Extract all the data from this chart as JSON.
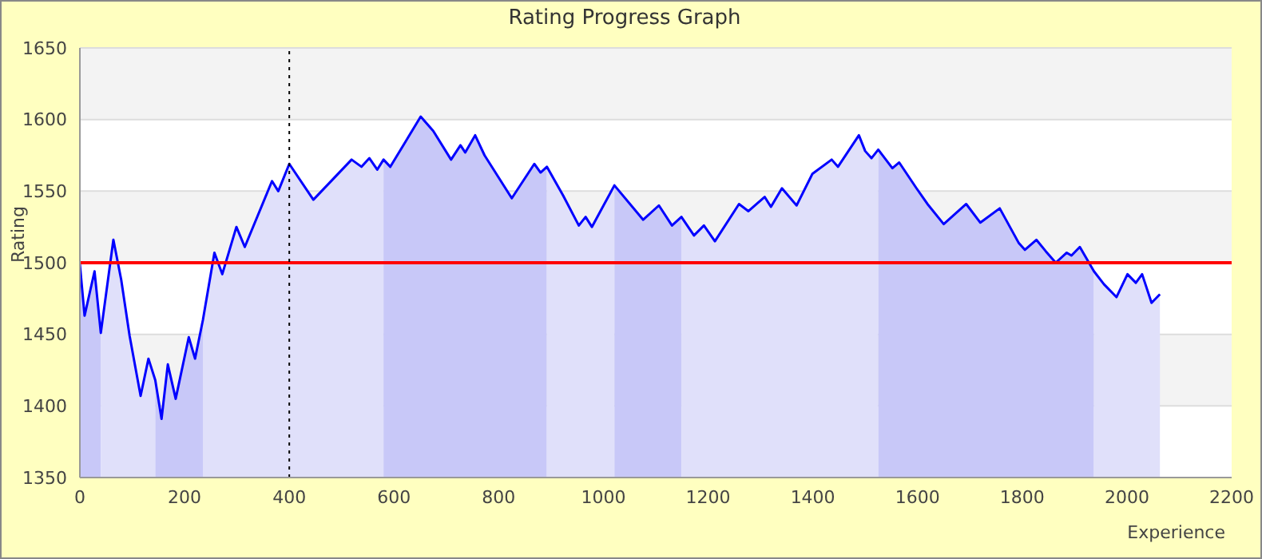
{
  "chart_data": {
    "type": "area",
    "title": "Rating Progress Graph",
    "xlabel": "Experience",
    "ylabel": "Rating",
    "series": [
      {
        "color": "#c8c8f8",
        "x": [
          0,
          9,
          28,
          40
        ],
        "values": [
          1499,
          1463,
          1494,
          1451
        ]
      },
      {
        "color": "#e0e0fa",
        "x": [
          40,
          64,
          79,
          95,
          116,
          131,
          144
        ],
        "values": [
          1451,
          1516,
          1488,
          1449,
          1407,
          1433,
          1418
        ]
      },
      {
        "color": "#c8c8f8",
        "x": [
          144,
          156,
          168,
          183,
          208,
          220,
          235
        ],
        "values": [
          1418,
          1391,
          1429,
          1405,
          1448,
          1433,
          1460
        ]
      },
      {
        "color": "#e0e0fa",
        "x": [
          235,
          257,
          272,
          299,
          315,
          367,
          379,
          400,
          446,
          519,
          538,
          553,
          568,
          580
        ],
        "values": [
          1460,
          1507,
          1492,
          1525,
          1511,
          1557,
          1550,
          1569,
          1544,
          1572,
          1567,
          1573,
          1565,
          1572
        ]
      },
      {
        "color": "#c8c8f8",
        "x": [
          580,
          593,
          651,
          675,
          709,
          727,
          736,
          755,
          773,
          825,
          868,
          880,
          892
        ],
        "values": [
          1572,
          1567,
          1602,
          1592,
          1572,
          1582,
          1577,
          1589,
          1575,
          1545,
          1569,
          1563,
          1567
        ]
      },
      {
        "color": "#e0e0fa",
        "x": [
          892,
          923,
          953,
          966,
          978,
          1021
        ],
        "values": [
          1567,
          1547,
          1526,
          1532,
          1525,
          1554
        ]
      },
      {
        "color": "#c8c8f8",
        "x": [
          1021,
          1076,
          1106,
          1131,
          1149
        ],
        "values": [
          1554,
          1530,
          1540,
          1526,
          1532
        ]
      },
      {
        "color": "#e0e0fa",
        "x": [
          1149,
          1173,
          1192,
          1213,
          1259,
          1277,
          1308,
          1320,
          1341,
          1369,
          1399,
          1436,
          1448,
          1488,
          1500,
          1512,
          1525
        ],
        "values": [
          1532,
          1519,
          1526,
          1515,
          1541,
          1536,
          1546,
          1539,
          1552,
          1540,
          1562,
          1572,
          1567,
          1589,
          1578,
          1573,
          1579
        ]
      },
      {
        "color": "#c8c8f8",
        "x": [
          1525,
          1552,
          1565,
          1598,
          1619,
          1650,
          1693,
          1720,
          1757,
          1793,
          1805,
          1827,
          1845,
          1864,
          1885,
          1894,
          1910,
          1937
        ],
        "values": [
          1579,
          1566,
          1570,
          1552,
          1541,
          1527,
          1541,
          1528,
          1538,
          1514,
          1509,
          1516,
          1508,
          1500,
          1507,
          1505,
          1511,
          1494
        ]
      },
      {
        "color": "#e0e0fa",
        "x": [
          1937,
          1956,
          1980,
          2001,
          2017,
          2029,
          2047,
          2063
        ],
        "values": [
          1494,
          1485,
          1476,
          1492,
          1486,
          1492,
          1472,
          1478
        ]
      },
      {
        "type": "line",
        "color": "#0000ff",
        "x": [
          0,
          9,
          28,
          40,
          64,
          79,
          95,
          116,
          131,
          144,
          156,
          168,
          183,
          208,
          220,
          235,
          257,
          272,
          299,
          315,
          367,
          379,
          400,
          446,
          519,
          538,
          553,
          568,
          580,
          593,
          651,
          675,
          709,
          727,
          736,
          755,
          773,
          825,
          868,
          880,
          892,
          923,
          953,
          966,
          978,
          1021,
          1076,
          1106,
          1131,
          1149,
          1173,
          1192,
          1213,
          1259,
          1277,
          1308,
          1320,
          1341,
          1369,
          1399,
          1436,
          1448,
          1488,
          1500,
          1512,
          1525,
          1552,
          1565,
          1598,
          1619,
          1650,
          1693,
          1720,
          1757,
          1793,
          1805,
          1827,
          1845,
          1864,
          1885,
          1894,
          1910,
          1937,
          1956,
          1980,
          2001,
          2017,
          2029,
          2047,
          2063
        ],
        "values": [
          1499,
          1463,
          1494,
          1451,
          1516,
          1488,
          1449,
          1407,
          1433,
          1418,
          1391,
          1429,
          1405,
          1448,
          1433,
          1460,
          1507,
          1492,
          1525,
          1511,
          1557,
          1550,
          1569,
          1544,
          1572,
          1567,
          1573,
          1565,
          1572,
          1567,
          1602,
          1592,
          1572,
          1582,
          1577,
          1589,
          1575,
          1545,
          1569,
          1563,
          1567,
          1547,
          1526,
          1532,
          1525,
          1554,
          1530,
          1540,
          1526,
          1532,
          1519,
          1526,
          1515,
          1541,
          1536,
          1546,
          1539,
          1552,
          1540,
          1562,
          1572,
          1567,
          1589,
          1578,
          1573,
          1579,
          1566,
          1570,
          1552,
          1541,
          1527,
          1541,
          1528,
          1538,
          1514,
          1509,
          1516,
          1508,
          1500,
          1507,
          1505,
          1511,
          1494,
          1485,
          1476,
          1492,
          1486,
          1492,
          1472,
          1478
        ]
      }
    ],
    "xlim": [
      0,
      2200
    ],
    "xticks": [
      0,
      200,
      400,
      600,
      800,
      1000,
      1200,
      1400,
      1600,
      1800,
      2000,
      2200
    ],
    "ylim": [
      1350,
      1650
    ],
    "yticks": [
      1350,
      1400,
      1450,
      1500,
      1550,
      1600,
      1650
    ],
    "grid": "y",
    "ref_lines": [
      {
        "axis": "y",
        "value": 1500,
        "color": "#ff0000",
        "line_style": "solid"
      },
      {
        "axis": "x",
        "value": 400,
        "color": "#000000",
        "line_style": "dotted"
      }
    ]
  }
}
